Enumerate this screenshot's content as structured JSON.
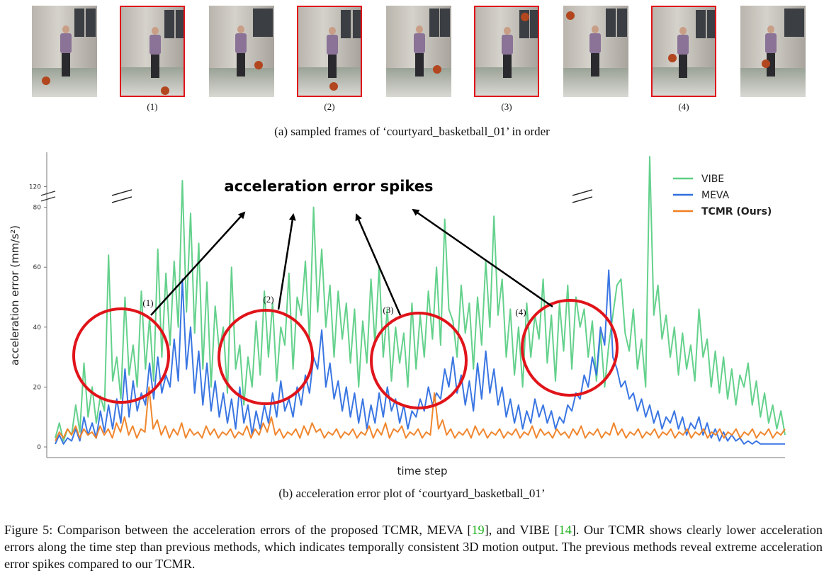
{
  "frames": {
    "items": [
      {
        "label": "",
        "highlighted": false
      },
      {
        "label": "(1)",
        "highlighted": true
      },
      {
        "label": "",
        "highlighted": false
      },
      {
        "label": "(2)",
        "highlighted": true
      },
      {
        "label": "",
        "highlighted": false
      },
      {
        "label": "(3)",
        "highlighted": true
      },
      {
        "label": "",
        "highlighted": false
      },
      {
        "label": "(4)",
        "highlighted": true
      },
      {
        "label": "",
        "highlighted": false
      }
    ],
    "caption": "(a) sampled frames of ‘courtyard_basketball_01’ in order"
  },
  "chart_data": {
    "type": "line",
    "title": "acceleration error spikes",
    "xlabel": "time step",
    "ylabel": "acceleration error (mm/s²)",
    "yticks": [
      0,
      20,
      40,
      60,
      80,
      120
    ],
    "ylim": [
      0,
      125
    ],
    "y_axis_break": [
      83,
      118
    ],
    "legend_position": "top-right",
    "grid": false,
    "colors": {
      "VIBE": "#5ccf86",
      "MEVA": "#2f6fe0",
      "TCMR (Ours)": "#ef7f22"
    },
    "series": [
      {
        "name": "VIBE",
        "values": [
          3,
          8,
          2,
          6,
          4,
          14,
          5,
          28,
          10,
          20,
          8,
          17,
          12,
          64,
          22,
          30,
          16,
          50,
          24,
          34,
          20,
          52,
          26,
          43,
          22,
          66,
          30,
          58,
          34,
          62,
          40,
          122,
          45,
          78,
          38,
          68,
          26,
          55,
          20,
          47,
          32,
          40,
          18,
          60,
          26,
          34,
          14,
          30,
          20,
          42,
          24,
          52,
          30,
          48,
          22,
          40,
          34,
          58,
          26,
          50,
          44,
          62,
          36,
          80,
          45,
          66,
          40,
          54,
          30,
          52,
          36,
          48,
          28,
          46,
          20,
          42,
          28,
          56,
          34,
          60,
          30,
          46,
          22,
          40,
          28,
          38,
          20,
          48,
          26,
          44,
          30,
          52,
          36,
          60,
          34,
          76,
          46,
          42,
          30,
          54,
          38,
          48,
          26,
          50,
          34,
          62,
          40,
          77,
          44,
          56,
          30,
          46,
          24,
          40,
          20,
          48,
          30,
          44,
          36,
          56,
          28,
          44,
          22,
          48,
          32,
          54,
          26,
          50,
          40,
          46,
          30,
          42,
          22,
          38,
          20,
          34,
          44,
          54,
          56,
          38,
          32,
          46,
          26,
          36,
          20,
          130,
          44,
          54,
          36,
          44,
          30,
          40,
          24,
          38,
          26,
          34,
          22,
          46,
          30,
          36,
          20,
          32,
          18,
          30,
          16,
          26,
          14,
          24,
          20,
          28,
          14,
          22,
          10,
          18,
          8,
          14,
          6,
          12,
          4
        ]
      },
      {
        "name": "MEVA",
        "values": [
          1,
          4,
          1,
          3,
          2,
          6,
          2,
          10,
          4,
          8,
          3,
          12,
          5,
          14,
          6,
          16,
          8,
          26,
          10,
          22,
          12,
          18,
          14,
          28,
          16,
          30,
          18,
          24,
          20,
          36,
          22,
          56,
          26,
          40,
          18,
          32,
          14,
          28,
          12,
          22,
          10,
          18,
          8,
          16,
          6,
          20,
          8,
          14,
          4,
          12,
          6,
          14,
          8,
          18,
          10,
          22,
          12,
          16,
          10,
          20,
          14,
          24,
          18,
          30,
          26,
          39,
          20,
          28,
          16,
          22,
          12,
          20,
          10,
          18,
          8,
          16,
          6,
          14,
          8,
          18,
          10,
          20,
          12,
          16,
          8,
          14,
          6,
          12,
          10,
          16,
          12,
          20,
          14,
          18,
          16,
          26,
          20,
          30,
          18,
          24,
          14,
          22,
          12,
          28,
          16,
          32,
          18,
          26,
          14,
          20,
          10,
          16,
          8,
          14,
          6,
          12,
          8,
          16,
          10,
          14,
          8,
          12,
          6,
          10,
          8,
          14,
          12,
          18,
          16,
          24,
          20,
          30,
          24,
          40,
          34,
          59,
          30,
          26,
          20,
          22,
          16,
          18,
          12,
          16,
          10,
          14,
          8,
          12,
          6,
          10,
          8,
          12,
          6,
          10,
          4,
          8,
          6,
          10,
          4,
          8,
          3,
          6,
          2,
          5,
          2,
          4,
          2,
          3,
          1,
          2,
          1,
          2,
          1,
          1,
          1,
          1,
          1,
          1,
          1
        ]
      },
      {
        "name": "TCMR (Ours)",
        "values": [
          2,
          5,
          3,
          6,
          4,
          7,
          3,
          6,
          4,
          5,
          3,
          7,
          4,
          6,
          3,
          8,
          5,
          10,
          4,
          7,
          3,
          6,
          5,
          20,
          6,
          9,
          4,
          7,
          3,
          6,
          4,
          8,
          3,
          6,
          4,
          5,
          3,
          7,
          4,
          6,
          3,
          5,
          4,
          6,
          3,
          5,
          4,
          7,
          3,
          6,
          4,
          8,
          5,
          10,
          4,
          6,
          3,
          5,
          4,
          6,
          3,
          7,
          4,
          8,
          5,
          6,
          3,
          5,
          4,
          6,
          3,
          5,
          4,
          6,
          3,
          5,
          4,
          7,
          3,
          6,
          4,
          8,
          3,
          6,
          5,
          7,
          3,
          5,
          4,
          6,
          3,
          5,
          4,
          18,
          6,
          9,
          4,
          6,
          3,
          5,
          4,
          6,
          3,
          7,
          4,
          6,
          3,
          5,
          4,
          6,
          3,
          5,
          4,
          6,
          3,
          5,
          4,
          7,
          3,
          6,
          4,
          5,
          3,
          6,
          4,
          5,
          3,
          6,
          4,
          7,
          3,
          5,
          4,
          6,
          3,
          5,
          4,
          8,
          4,
          6,
          3,
          5,
          4,
          6,
          3,
          5,
          4,
          6,
          3,
          5,
          4,
          6,
          3,
          5,
          4,
          6,
          3,
          5,
          4,
          6,
          3,
          5,
          4,
          6,
          3,
          5,
          4,
          6,
          3,
          5,
          4,
          6,
          3,
          5,
          4,
          6,
          3,
          5,
          4,
          6
        ]
      }
    ],
    "annotations": [
      "(1)",
      "(2)",
      "(3)",
      "(4)"
    ]
  },
  "plot_caption": "(b) acceleration error plot of ‘courtyard_basketball_01’",
  "figure_caption": {
    "part1": "Figure 5: Comparison between the acceleration errors of the proposed TCMR, MEVA [",
    "ref1": "19",
    "part2": "], and VIBE [",
    "ref2": "14",
    "part3": "]. Our TCMR shows clearly lower acceleration errors along the time step than previous methods, which indicates temporally consistent 3D motion output. The previous methods reveal extreme acceleration error spikes compared to our TCMR."
  }
}
